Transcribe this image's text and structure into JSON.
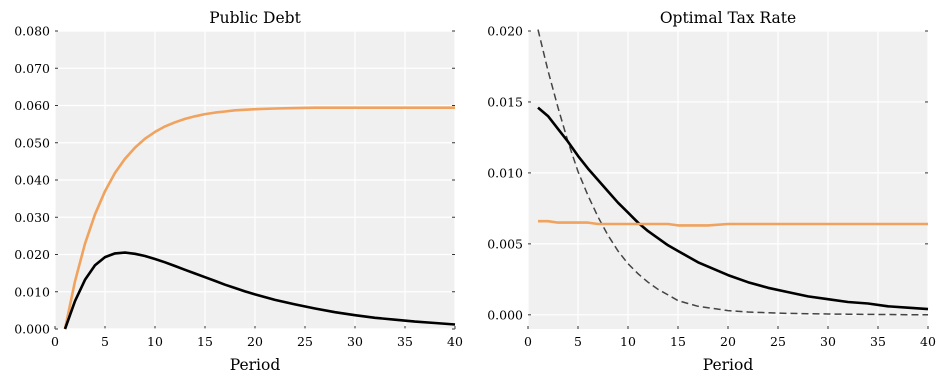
{
  "chart_data": [
    {
      "type": "line",
      "title": "Public Debt",
      "xlabel": "Period",
      "ylabel": "",
      "xlim": [
        0,
        40
      ],
      "ylim": [
        0,
        0.08
      ],
      "xticks": [
        "0",
        "5",
        "10",
        "15",
        "20",
        "25",
        "30",
        "35",
        "40"
      ],
      "yticks": [
        "0.000",
        "0.010",
        "0.020",
        "0.030",
        "0.040",
        "0.050",
        "0.060",
        "0.070",
        "0.080"
      ],
      "grid": true,
      "background": "#f0f0f0",
      "series": [
        {
          "color": "#f0a35e",
          "style": "solid",
          "x": [
            1,
            2,
            3,
            4,
            5,
            6,
            7,
            8,
            9,
            10,
            11,
            12,
            13,
            14,
            15,
            16,
            17,
            18,
            20,
            22,
            24,
            26,
            28,
            30,
            32,
            34,
            36,
            38,
            40
          ],
          "y": [
            0.0,
            0.0128,
            0.0229,
            0.0308,
            0.037,
            0.0419,
            0.0457,
            0.0487,
            0.0511,
            0.0529,
            0.0544,
            0.0555,
            0.0564,
            0.0571,
            0.0577,
            0.0581,
            0.0584,
            0.0587,
            0.059,
            0.0592,
            0.0593,
            0.0594,
            0.0594,
            0.0594,
            0.0594,
            0.0594,
            0.0594,
            0.0594,
            0.0594
          ]
        },
        {
          "color": "#000000",
          "style": "solid",
          "x": [
            1,
            2,
            3,
            4,
            5,
            6,
            7,
            8,
            9,
            10,
            11,
            12,
            13,
            14,
            15,
            16,
            17,
            18,
            19,
            20,
            22,
            24,
            26,
            28,
            30,
            32,
            34,
            36,
            38,
            40
          ],
          "y": [
            0.0,
            0.0075,
            0.0132,
            0.0171,
            0.0193,
            0.0203,
            0.0205,
            0.0202,
            0.0196,
            0.0188,
            0.0179,
            0.0169,
            0.0159,
            0.0149,
            0.0139,
            0.0129,
            0.0119,
            0.011,
            0.0101,
            0.0093,
            0.0078,
            0.0066,
            0.0055,
            0.0045,
            0.0037,
            0.003,
            0.0025,
            0.002,
            0.0016,
            0.0012
          ]
        }
      ]
    },
    {
      "type": "line",
      "title": "Optimal Tax Rate",
      "xlabel": "Period",
      "ylabel": "",
      "xlim": [
        0,
        40
      ],
      "ylim": [
        -0.001,
        0.02
      ],
      "xticks": [
        "0",
        "5",
        "10",
        "15",
        "20",
        "25",
        "30",
        "35",
        "40"
      ],
      "yticks": [
        "0.000",
        "0.005",
        "0.010",
        "0.015",
        "0.020"
      ],
      "grid": true,
      "background": "#f0f0f0",
      "series": [
        {
          "color": "#444444",
          "style": "dashed",
          "x": [
            1,
            2,
            3,
            4,
            5,
            6,
            7,
            8,
            9,
            10,
            11,
            12,
            13,
            14,
            15,
            16,
            17,
            18,
            20,
            22,
            24,
            26,
            28,
            30,
            32,
            34,
            36,
            38,
            40
          ],
          "y": [
            0.0201,
            0.0172,
            0.0146,
            0.0122,
            0.0101,
            0.0084,
            0.0069,
            0.0056,
            0.0045,
            0.0036,
            0.0029,
            0.0023,
            0.0018,
            0.0014,
            0.001,
            0.0008,
            0.0006,
            0.0005,
            0.0003,
            0.0002,
            0.00015,
            0.0001,
            8e-05,
            6e-05,
            4e-05,
            3e-05,
            2e-05,
            1e-05,
            0.0
          ]
        },
        {
          "color": "#000000",
          "style": "solid",
          "x": [
            1,
            2,
            3,
            4,
            5,
            6,
            7,
            8,
            9,
            10,
            11,
            12,
            13,
            14,
            15,
            16,
            17,
            18,
            19,
            20,
            22,
            24,
            26,
            28,
            30,
            32,
            34,
            36,
            38,
            40
          ],
          "y": [
            0.0146,
            0.014,
            0.0131,
            0.0122,
            0.0112,
            0.0103,
            0.0095,
            0.0087,
            0.0079,
            0.0072,
            0.0065,
            0.0059,
            0.0054,
            0.0049,
            0.0045,
            0.0041,
            0.0037,
            0.0034,
            0.0031,
            0.0028,
            0.0023,
            0.0019,
            0.0016,
            0.0013,
            0.0011,
            0.0009,
            0.0008,
            0.0006,
            0.0005,
            0.0004
          ]
        },
        {
          "color": "#f0a35e",
          "style": "solid",
          "x": [
            1,
            2,
            3,
            4,
            5,
            6,
            7,
            8,
            9,
            10,
            11,
            12,
            13,
            14,
            15,
            16,
            18,
            20,
            25,
            30,
            35,
            40
          ],
          "y": [
            0.0066,
            0.0066,
            0.0065,
            0.0065,
            0.0065,
            0.0065,
            0.0064,
            0.0064,
            0.0064,
            0.0064,
            0.0064,
            0.0064,
            0.0064,
            0.0064,
            0.0063,
            0.0063,
            0.0063,
            0.0064,
            0.0064,
            0.0064,
            0.0064,
            0.0064
          ]
        }
      ]
    }
  ]
}
